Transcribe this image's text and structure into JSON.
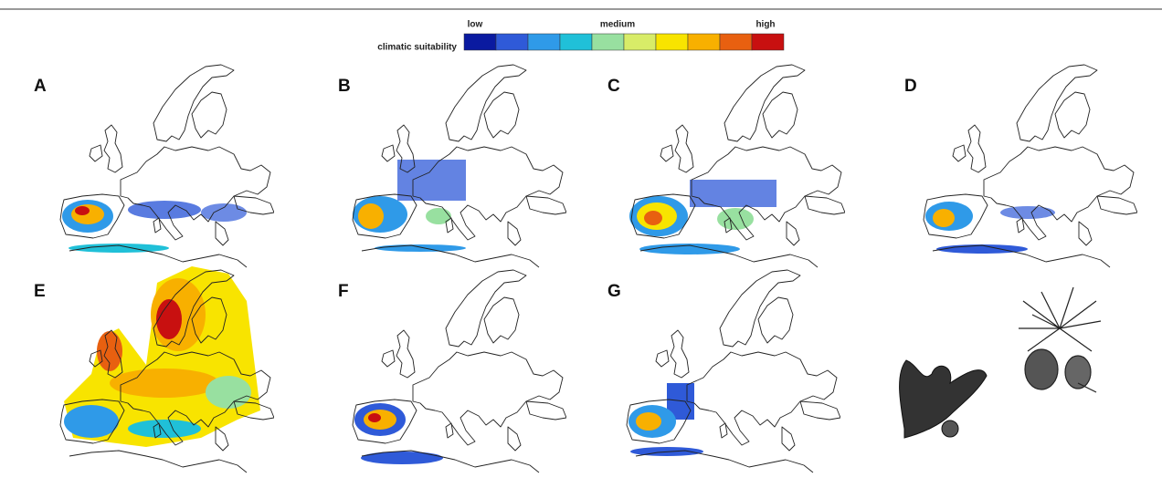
{
  "legend": {
    "title": "climatic suitability",
    "low": "low",
    "medium": "medium",
    "high": "high",
    "colors": [
      "#0a1aa0",
      "#2f5ad8",
      "#2f9ae8",
      "#20c0d8",
      "#98e0a0",
      "#d8ec68",
      "#f8e400",
      "#f8b000",
      "#e86010",
      "#c81010"
    ]
  },
  "panels": [
    "A",
    "B",
    "C",
    "D",
    "E",
    "F",
    "G"
  ]
}
